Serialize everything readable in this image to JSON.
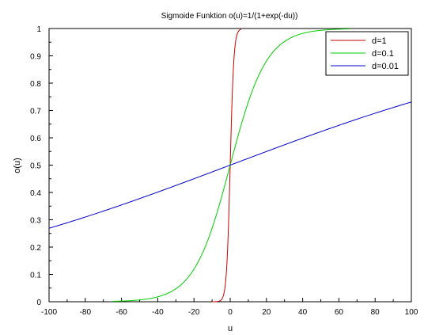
{
  "chart_data": {
    "type": "line",
    "title": "Sigmoide Funktion o(u)=1/(1+exp(-du))",
    "xlabel": "u",
    "ylabel": "o(u)",
    "xlim": [
      -100,
      100
    ],
    "ylim": [
      0,
      1
    ],
    "x_ticks": [
      -100,
      -80,
      -60,
      -40,
      -20,
      0,
      20,
      40,
      60,
      80,
      100
    ],
    "y_ticks": [
      0,
      0.1,
      0.2,
      0.3,
      0.4,
      0.5,
      0.6,
      0.7,
      0.8,
      0.9,
      1
    ],
    "x_tick_labels": [
      "-100",
      "-80",
      "-60",
      "-40",
      "-20",
      "0",
      "20",
      "40",
      "60",
      "80",
      "100"
    ],
    "y_tick_labels": [
      "0",
      "0.1",
      "0.2",
      "0.3",
      "0.4",
      "0.5",
      "0.6",
      "0.7",
      "0.8",
      "0.9",
      "1"
    ],
    "grid": false,
    "legend_position": "top-right",
    "series": [
      {
        "name": "d=1",
        "d": 1,
        "color": "#cc0000",
        "x_range": [
          -10,
          6
        ],
        "x": [
          -10,
          -8,
          -6,
          -5,
          -4,
          -3,
          -2,
          -1,
          0,
          1,
          2,
          3,
          4,
          5,
          6
        ],
        "y": [
          4.54e-05,
          0.000335,
          0.00247,
          0.00669,
          0.018,
          0.0474,
          0.1192,
          0.2689,
          0.5,
          0.7311,
          0.8808,
          0.9526,
          0.982,
          0.9933,
          0.9975
        ]
      },
      {
        "name": "d=0.1",
        "d": 0.1,
        "color": "#00cc00",
        "x_range": [
          -65,
          66
        ],
        "x": [
          -65,
          -60,
          -50,
          -40,
          -30,
          -20,
          -10,
          0,
          10,
          20,
          30,
          40,
          50,
          60,
          66
        ],
        "y": [
          0.0015,
          0.0025,
          0.0067,
          0.018,
          0.0474,
          0.1192,
          0.2689,
          0.5,
          0.7311,
          0.8808,
          0.9526,
          0.982,
          0.9933,
          0.9975,
          0.9986
        ]
      },
      {
        "name": "d=0.01",
        "d": 0.01,
        "color": "#0000cc",
        "x_range": [
          -100,
          100
        ],
        "x": [
          -100,
          -80,
          -60,
          -40,
          -20,
          0,
          20,
          40,
          60,
          80,
          100
        ],
        "y": [
          0.2689,
          0.31,
          0.3543,
          0.4013,
          0.4502,
          0.5,
          0.5498,
          0.5987,
          0.6457,
          0.69,
          0.7311
        ]
      }
    ]
  }
}
